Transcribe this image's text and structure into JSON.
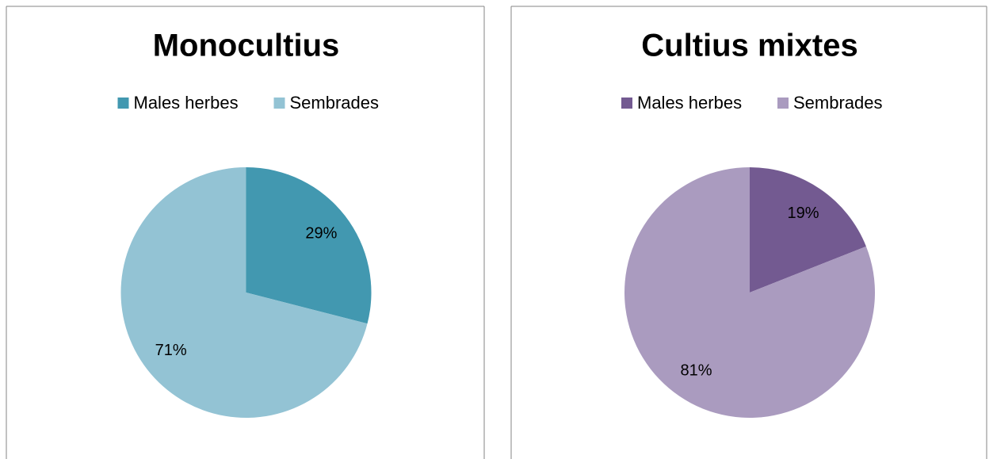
{
  "chart_data": [
    {
      "type": "pie",
      "title": "Monocultius",
      "categories": [
        "Males herbes",
        "Sembrades"
      ],
      "values": [
        29,
        71
      ],
      "value_labels": [
        "29%",
        "71%"
      ],
      "colors": [
        "#4298b0",
        "#93c3d4"
      ]
    },
    {
      "type": "pie",
      "title": "Cultius mixtes",
      "categories": [
        "Males herbes",
        "Sembrades"
      ],
      "values": [
        19,
        81
      ],
      "value_labels": [
        "19%",
        "81%"
      ],
      "colors": [
        "#735a91",
        "#aa9bbf"
      ]
    }
  ]
}
